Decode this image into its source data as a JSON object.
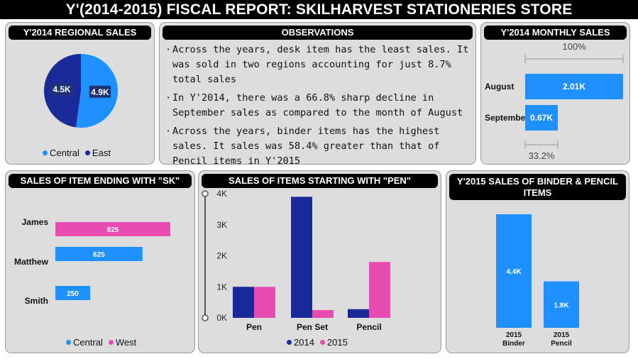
{
  "page_title": "Y'(2014-2015) FISCAL REPORT: SKILHARVEST STATIONERIES STORE",
  "colors": {
    "blue": "#1e90ff",
    "navy": "#1b2a9b",
    "pink": "#e84cb2",
    "panel": "#dddddd",
    "header": "#000000"
  },
  "regional": {
    "title": "Y'2014 REGIONAL SALES",
    "legend": [
      "Central",
      "East"
    ],
    "chart_data": {
      "type": "pie",
      "labels": [
        "Central",
        "East"
      ],
      "values": [
        4.9,
        4.5
      ],
      "data_labels": [
        "4.9K",
        "4.5K"
      ],
      "colors": [
        "#1e90ff",
        "#1b2a9b"
      ],
      "legend_position": "bottom"
    }
  },
  "observations": {
    "title": "OBSERVATIONS",
    "items": [
      "Across the years, desk item has the least sales. It was sold in two regions accounting for just 8.7% total sales",
      "In Y'2014, there was a 66.8% sharp decline in September sales as compared to the month of August",
      "Across the years, binder items has the highest sales. It sales was 58.4% greater than that of Pencil items in Y'2015"
    ]
  },
  "monthly": {
    "title": "Y'2014 MONTHLY SALES",
    "top_label": "100%",
    "bottom_label": "33.2%",
    "chart_data": {
      "type": "bar",
      "orientation": "horizontal",
      "categories": [
        "August",
        "September"
      ],
      "values": [
        2.01,
        0.67
      ],
      "data_labels": [
        "2.01K",
        "0.67K"
      ],
      "color": "#1e90ff"
    }
  },
  "sk": {
    "title": "SALES OF ITEM ENDING WITH \"SK\"",
    "legend": [
      "Central",
      "West"
    ],
    "chart_data": {
      "type": "bar",
      "orientation": "horizontal",
      "categories": [
        "James",
        "Matthew",
        "Smith"
      ],
      "values": [
        825,
        625,
        250
      ],
      "data_labels": [
        "825",
        "625",
        "250"
      ],
      "bar_regions": [
        "West",
        "Central",
        "Central"
      ],
      "legend_position": "bottom"
    }
  },
  "pen": {
    "title": "SALES OF ITEMS STARTING WITH \"PEN\"",
    "legend": [
      "2014",
      "2015"
    ],
    "chart_data": {
      "type": "bar",
      "categories": [
        "Pen",
        "Pen Set",
        "Pencil"
      ],
      "series": [
        {
          "name": "2014",
          "values": [
            1.0,
            3.9,
            0.28
          ],
          "color": "#1b2a9b"
        },
        {
          "name": "2015",
          "values": [
            1.0,
            0.25,
            1.8
          ],
          "color": "#e84cb2"
        }
      ],
      "ylim": [
        0,
        4
      ],
      "yticks": [
        "0K",
        "1K",
        "2K",
        "3K",
        "4K"
      ],
      "legend_position": "bottom"
    }
  },
  "binder": {
    "title": "Y'2015 SALES OF BINDER & PENCIL ITEMS",
    "chart_data": {
      "type": "bar",
      "categories": [
        [
          "2015",
          "Binder"
        ],
        [
          "2015",
          "Pencil"
        ]
      ],
      "values": [
        4.4,
        1.8
      ],
      "data_labels": [
        "4.4K",
        "1.8K"
      ],
      "color": "#1e90ff"
    }
  }
}
